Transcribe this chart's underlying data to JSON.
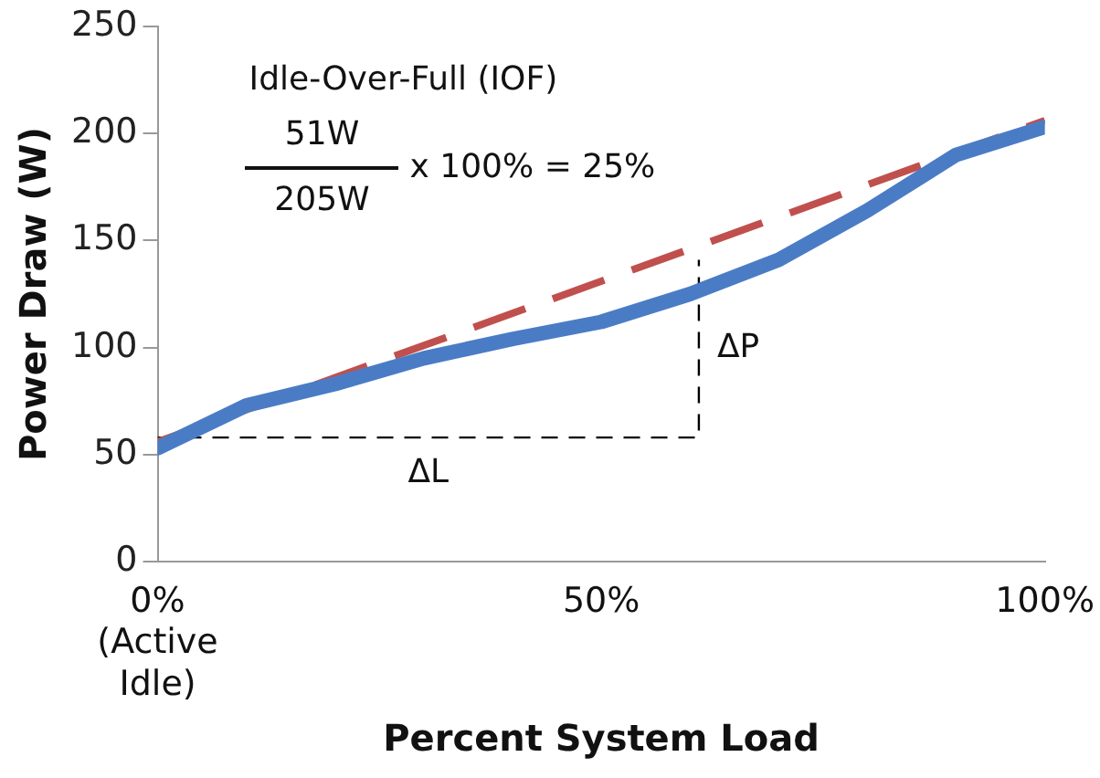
{
  "chart_data": {
    "type": "line",
    "xlabel": "Percent System Load",
    "ylabel": "Power Draw (W)",
    "x": [
      0,
      10,
      20,
      30,
      40,
      50,
      60,
      70,
      80,
      90,
      100
    ],
    "series": [
      {
        "color": "#4a7cc6",
        "values": [
          53,
          73,
          83,
          95,
          104,
          112,
          125,
          141,
          164,
          190,
          203
        ],
        "line_style": "solid"
      },
      {
        "color": "#c0504d",
        "x": [
          0,
          100
        ],
        "values": [
          56,
          206
        ],
        "line_style": "dashed"
      },
      {
        "color": "#000000",
        "x": [
          0,
          61,
          61
        ],
        "values": [
          58,
          58,
          141
        ],
        "line_style": "dashed"
      }
    ],
    "xlim": [
      0,
      100
    ],
    "xticks": [
      {
        "value": 0,
        "label": "0%\n(Active\nIdle)"
      },
      {
        "value": 50,
        "label": "50%"
      },
      {
        "value": 100,
        "label": "100%"
      }
    ],
    "ylim": [
      0,
      250
    ],
    "yticks": [
      0,
      50,
      100,
      150,
      200,
      250
    ],
    "annotations": [
      "Idle-Over-Full (IOF)",
      "51W",
      "205W",
      "x 100% = 25%",
      "ΔL",
      "ΔP"
    ],
    "grid": false,
    "legend": false,
    "marker": "none"
  }
}
